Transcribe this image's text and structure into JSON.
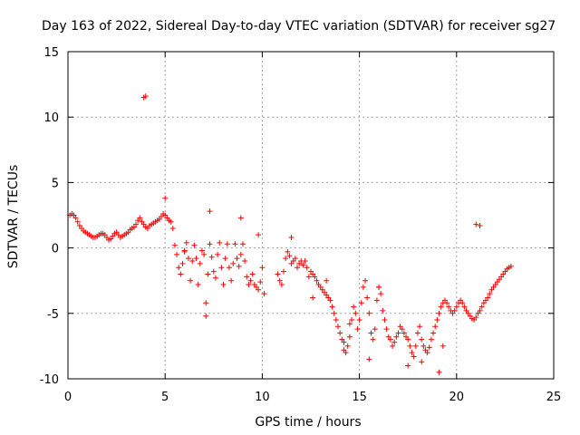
{
  "chart_data": {
    "type": "scatter",
    "title": "Day 163 of 2022, Sidereal Day-to-day VTEC variation (SDTVAR) for receiver sg27",
    "xlabel": "GPS time / hours",
    "ylabel": "SDTVAR / TECUs",
    "xlim": [
      0,
      25
    ],
    "ylim": [
      -10,
      15
    ],
    "xticks": [
      0,
      5,
      10,
      15,
      20,
      25
    ],
    "yticks": [
      -10,
      -5,
      0,
      5,
      10,
      15
    ],
    "grid": true,
    "marker": "+",
    "series": [
      {
        "name": "SDTVAR",
        "color": "#ff0000",
        "x": [
          0.1,
          0.2,
          0.3,
          0.4,
          0.5,
          0.6,
          0.7,
          0.8,
          0.9,
          1.0,
          1.1,
          1.2,
          1.3,
          1.4,
          1.5,
          1.6,
          1.7,
          1.8,
          1.9,
          2.0,
          2.1,
          2.2,
          2.3,
          2.4,
          2.5,
          2.6,
          2.7,
          2.8,
          2.9,
          3.0,
          3.1,
          3.2,
          3.3,
          3.4,
          3.5,
          3.6,
          3.7,
          3.8,
          3.9,
          4.0,
          4.1,
          4.2,
          4.3,
          4.4,
          4.5,
          4.6,
          4.7,
          4.8,
          4.9,
          5.0,
          5.1,
          5.2,
          5.3,
          5.4,
          5.5,
          5.6,
          5.7,
          5.8,
          5.9,
          6.0,
          6.1,
          6.2,
          6.3,
          6.4,
          6.5,
          6.6,
          6.7,
          6.8,
          6.9,
          7.0,
          7.1,
          7.2,
          7.3,
          7.4,
          7.5,
          7.6,
          7.7,
          7.8,
          7.9,
          8.0,
          8.1,
          8.2,
          8.3,
          8.4,
          8.5,
          8.6,
          8.7,
          8.8,
          8.9,
          9.0,
          9.1,
          9.2,
          9.3,
          9.4,
          9.5,
          9.6,
          9.7,
          9.8,
          9.9,
          10.0,
          10.8,
          10.9,
          11.0,
          11.1,
          11.2,
          11.3,
          11.4,
          11.5,
          11.6,
          11.7,
          11.8,
          11.9,
          12.0,
          12.1,
          12.2,
          12.3,
          12.4,
          12.5,
          12.6,
          12.7,
          12.8,
          12.9,
          13.0,
          13.1,
          13.2,
          13.3,
          13.4,
          13.5,
          13.6,
          13.7,
          13.8,
          13.9,
          14.0,
          14.1,
          14.2,
          14.3,
          14.4,
          14.5,
          14.6,
          14.7,
          14.8,
          14.9,
          15.0,
          15.1,
          15.2,
          15.3,
          15.4,
          15.5,
          15.6,
          15.7,
          15.8,
          15.9,
          16.0,
          16.1,
          16.2,
          16.3,
          16.4,
          16.5,
          16.6,
          16.7,
          16.8,
          16.9,
          17.0,
          17.1,
          17.2,
          17.3,
          17.4,
          17.5,
          17.6,
          17.7,
          17.8,
          17.9,
          18.0,
          18.1,
          18.2,
          18.3,
          18.4,
          18.5,
          18.6,
          18.7,
          18.8,
          18.9,
          19.0,
          19.1,
          19.2,
          19.3,
          19.4,
          19.5,
          19.6,
          19.7,
          19.8,
          19.9,
          20.0,
          20.1,
          20.2,
          20.3,
          20.4,
          20.5,
          20.6,
          20.7,
          20.8,
          20.9,
          21.0,
          21.1,
          21.2,
          21.3,
          21.4,
          21.5,
          21.6,
          21.7,
          21.8,
          21.9,
          22.0,
          22.1,
          22.2,
          22.3,
          22.4,
          22.5,
          22.6,
          22.7,
          22.8,
          3.9,
          4.0,
          21.0,
          21.2,
          5.0,
          7.3,
          8.9,
          9.8,
          11.5,
          16.0,
          14.5,
          15.5,
          17.5,
          18.2,
          19.1,
          19.3,
          6.0,
          7.1,
          10.1,
          12.6,
          13.3,
          14.2
        ],
        "y": [
          2.5,
          2.6,
          2.5,
          2.3,
          2.0,
          1.7,
          1.5,
          1.3,
          1.2,
          1.1,
          1.0,
          0.9,
          0.8,
          0.8,
          0.9,
          1.0,
          1.1,
          1.1,
          1.0,
          0.8,
          0.6,
          0.7,
          0.9,
          1.1,
          1.2,
          1.0,
          0.8,
          0.9,
          1.0,
          1.1,
          1.2,
          1.4,
          1.5,
          1.6,
          1.8,
          2.1,
          2.3,
          2.0,
          1.8,
          1.6,
          1.5,
          1.7,
          1.8,
          1.9,
          2.0,
          2.1,
          2.2,
          2.4,
          2.6,
          2.5,
          2.3,
          2.1,
          2.0,
          1.5,
          0.2,
          -0.5,
          -1.5,
          -2.0,
          -1.2,
          -0.3,
          0.4,
          -0.8,
          -2.5,
          -1.0,
          0.2,
          -0.8,
          -2.8,
          -1.2,
          -0.2,
          -0.5,
          -4.2,
          -2.0,
          0.3,
          -0.7,
          -1.8,
          -2.3,
          -0.5,
          0.4,
          -1.5,
          -2.8,
          -0.8,
          0.3,
          -1.5,
          -2.5,
          -1.2,
          0.3,
          -0.8,
          -1.4,
          -0.5,
          0.3,
          -1.0,
          -2.2,
          -2.8,
          -2.5,
          -2.0,
          -2.8,
          -3.0,
          -3.2,
          -2.6,
          -1.5,
          -2.0,
          -2.5,
          -2.8,
          -1.8,
          -0.8,
          -0.3,
          -0.6,
          -1.2,
          -1.0,
          -0.8,
          -1.5,
          -1.2,
          -1.0,
          -1.3,
          -1.0,
          -1.5,
          -2.2,
          -1.8,
          -2.0,
          -2.2,
          -2.5,
          -2.8,
          -3.0,
          -3.2,
          -3.4,
          -3.6,
          -3.8,
          -4.0,
          -4.5,
          -5.0,
          -5.5,
          -6.0,
          -6.5,
          -7.0,
          -7.8,
          -8.0,
          -7.5,
          -6.8,
          -5.5,
          -4.5,
          -5.0,
          -6.2,
          -5.5,
          -4.2,
          -3.0,
          -2.5,
          -3.8,
          -5.0,
          -6.5,
          -7.0,
          -6.2,
          -4.0,
          -3.0,
          -3.5,
          -4.8,
          -5.5,
          -6.2,
          -6.8,
          -7.0,
          -7.5,
          -7.2,
          -6.8,
          -6.5,
          -6.0,
          -6.2,
          -6.5,
          -6.8,
          -7.0,
          -7.5,
          -8.0,
          -8.3,
          -7.5,
          -6.5,
          -6.0,
          -7.0,
          -7.5,
          -7.8,
          -8.0,
          -7.6,
          -7.0,
          -6.5,
          -6.0,
          -5.5,
          -5.0,
          -4.5,
          -4.2,
          -4.0,
          -4.2,
          -4.5,
          -4.8,
          -5.0,
          -4.8,
          -4.5,
          -4.2,
          -4.0,
          -4.2,
          -4.5,
          -4.8,
          -5.0,
          -5.2,
          -5.4,
          -5.5,
          -5.3,
          -5.0,
          -4.8,
          -4.5,
          -4.2,
          -4.0,
          -3.8,
          -3.5,
          -3.2,
          -3.0,
          -2.8,
          -2.6,
          -2.4,
          -2.2,
          -2.0,
          -1.8,
          -1.6,
          -1.5,
          -1.4,
          11.5,
          11.6,
          1.8,
          1.7,
          3.8,
          2.8,
          2.3,
          1.0,
          0.8,
          -3.0,
          -5.8,
          -8.5,
          -9.0,
          -8.7,
          -9.5,
          -7.5,
          -0.2,
          -5.2,
          -3.5,
          -3.8,
          -2.5,
          -7.2
        ]
      }
    ]
  }
}
